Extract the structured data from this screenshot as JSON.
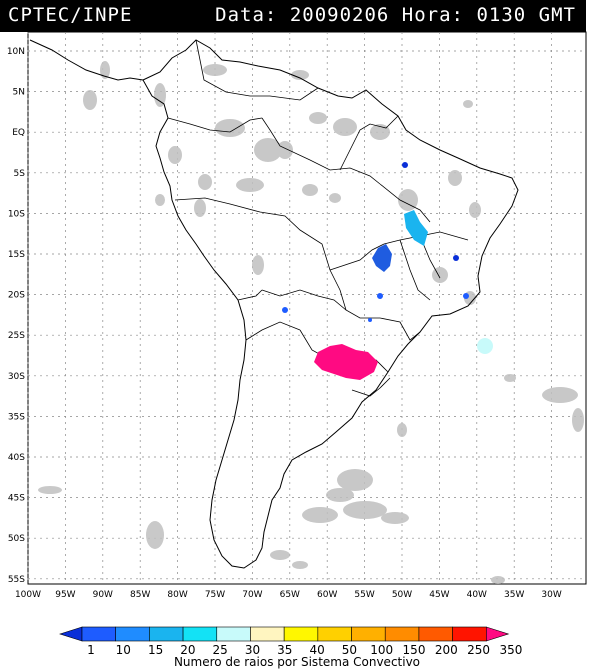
{
  "header": {
    "organization": "CPTEC/INPE",
    "date_label": "Data:",
    "date": "20090206",
    "time_label": "Hora:",
    "time": "0130",
    "timezone": "GMT"
  },
  "map": {
    "lat_labels": [
      "10N",
      "5N",
      "EQ",
      "5S",
      "10S",
      "15S",
      "20S",
      "25S",
      "30S",
      "35S",
      "40S",
      "45S",
      "50S",
      "55S"
    ],
    "lon_labels": [
      "100W",
      "95W",
      "90W",
      "85W",
      "80W",
      "75W",
      "70W",
      "65W",
      "60W",
      "55W",
      "50W",
      "45W",
      "40W",
      "35W",
      "30W"
    ]
  },
  "legend": {
    "title": "Numero de raios por Sistema Convectivo",
    "labels": [
      "1",
      "10",
      "15",
      "20",
      "25",
      "30",
      "35",
      "40",
      "50",
      "100",
      "150",
      "200",
      "250",
      "350"
    ],
    "colors": [
      "#0a2fd8",
      "#1e5cff",
      "#1f8cff",
      "#1ab4ef",
      "#13e2f5",
      "#c8fafa",
      "#fff5c0",
      "#fff700",
      "#ffd000",
      "#ffb000",
      "#ff8c00",
      "#ff5a00",
      "#ff1400",
      "#ff0a82"
    ]
  }
}
